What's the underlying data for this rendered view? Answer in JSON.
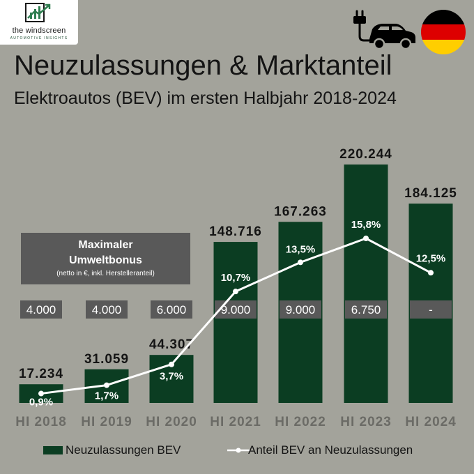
{
  "branding": {
    "name": "the windscreen",
    "tagline": "AUTOMOTIVE INSIGHTS"
  },
  "header": {
    "title": "Neuzulassungen & Marktanteil",
    "subtitle": "Elektroautos (BEV) im ersten Halbjahr 2018-2024"
  },
  "icons": {
    "car": "electric-car-icon",
    "flag": "germany-flag-icon"
  },
  "colors": {
    "background": "#a3a39b",
    "bar": "#0b3d22",
    "line": "#ffffff",
    "bonus_box": "#595959",
    "flag": [
      "#000000",
      "#dd0000",
      "#ffce00"
    ]
  },
  "bonus_box": {
    "title": "Maximaler Umweltbonus",
    "note": "(netto in €, inkl. Herstelleranteil)"
  },
  "bonus_values": [
    "4.000",
    "4.000",
    "6.000",
    "9.000",
    "9.000",
    "6.750",
    "-"
  ],
  "chart_data": {
    "type": "bar",
    "title": "Neuzulassungen & Marktanteil",
    "subtitle": "Elektroautos (BEV) im ersten Halbjahr 2018-2024",
    "categories": [
      "HI 2018",
      "HI 2019",
      "HI 2020",
      "HI 2021",
      "HI 2022",
      "HI 2023",
      "HI 2024"
    ],
    "series": [
      {
        "name": "Neuzulassungen BEV",
        "type": "bar",
        "values": [
          17234,
          31059,
          44307,
          148716,
          167263,
          220244,
          184125
        ],
        "labels": [
          "17.234",
          "31.059",
          "44.307",
          "148.716",
          "167.263",
          "220.244",
          "184.125"
        ]
      },
      {
        "name": "Anteil BEV an Neuzulassungen",
        "type": "line",
        "values": [
          0.9,
          1.7,
          3.7,
          10.7,
          13.5,
          15.8,
          12.5
        ],
        "labels": [
          "0,9%",
          "1,7%",
          "3,7%",
          "10,7%",
          "13,5%",
          "15,8%",
          "12,5%"
        ]
      }
    ],
    "ylim": [
      0,
      220244
    ],
    "y2lim": [
      0,
      15.8
    ],
    "grid": false,
    "legend": "bottom"
  }
}
